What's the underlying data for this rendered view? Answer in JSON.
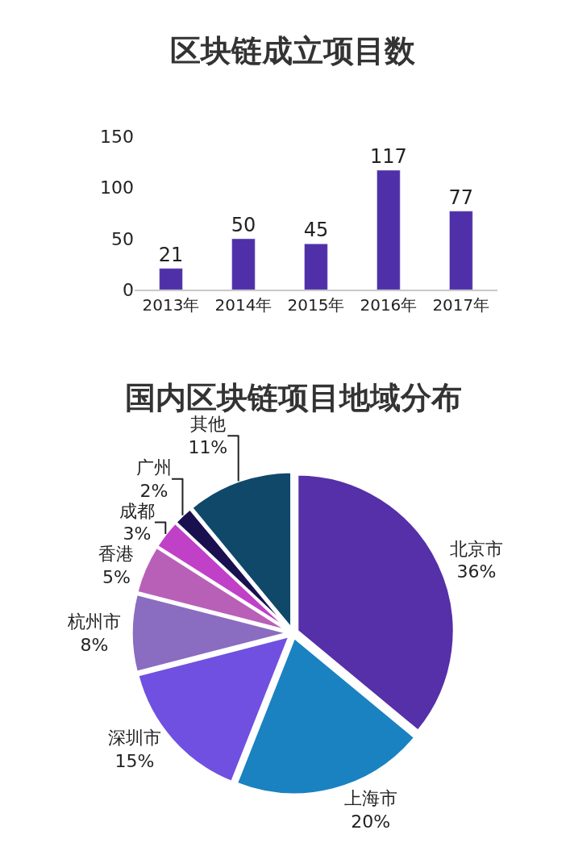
{
  "chart_data": [
    {
      "type": "bar",
      "title": "区块链成立项目数",
      "categories": [
        "2013年",
        "2014年",
        "2015年",
        "2016年",
        "2017年"
      ],
      "values": [
        21,
        50,
        45,
        117,
        77
      ],
      "color": "#5030a8",
      "ylim": [
        0,
        150
      ],
      "yticks": [
        0,
        50,
        100,
        150
      ],
      "data_labels": true
    },
    {
      "type": "pie",
      "title": "国内区块链项目地域分布",
      "categories": [
        "北京市",
        "上海市",
        "深圳市",
        "杭州市",
        "香港",
        "成都",
        "广州",
        "其他"
      ],
      "values": [
        36,
        20,
        15,
        8,
        5,
        3,
        2,
        11
      ],
      "value_labels": [
        "36%",
        "20%",
        "15%",
        "8%",
        "5%",
        "3%",
        "2%",
        "11%"
      ],
      "colors": [
        "#5530a8",
        "#1a82c0",
        "#7050e0",
        "#8a6cc0",
        "#b860b8",
        "#c040c8",
        "#1a1050",
        "#10486a"
      ]
    }
  ]
}
